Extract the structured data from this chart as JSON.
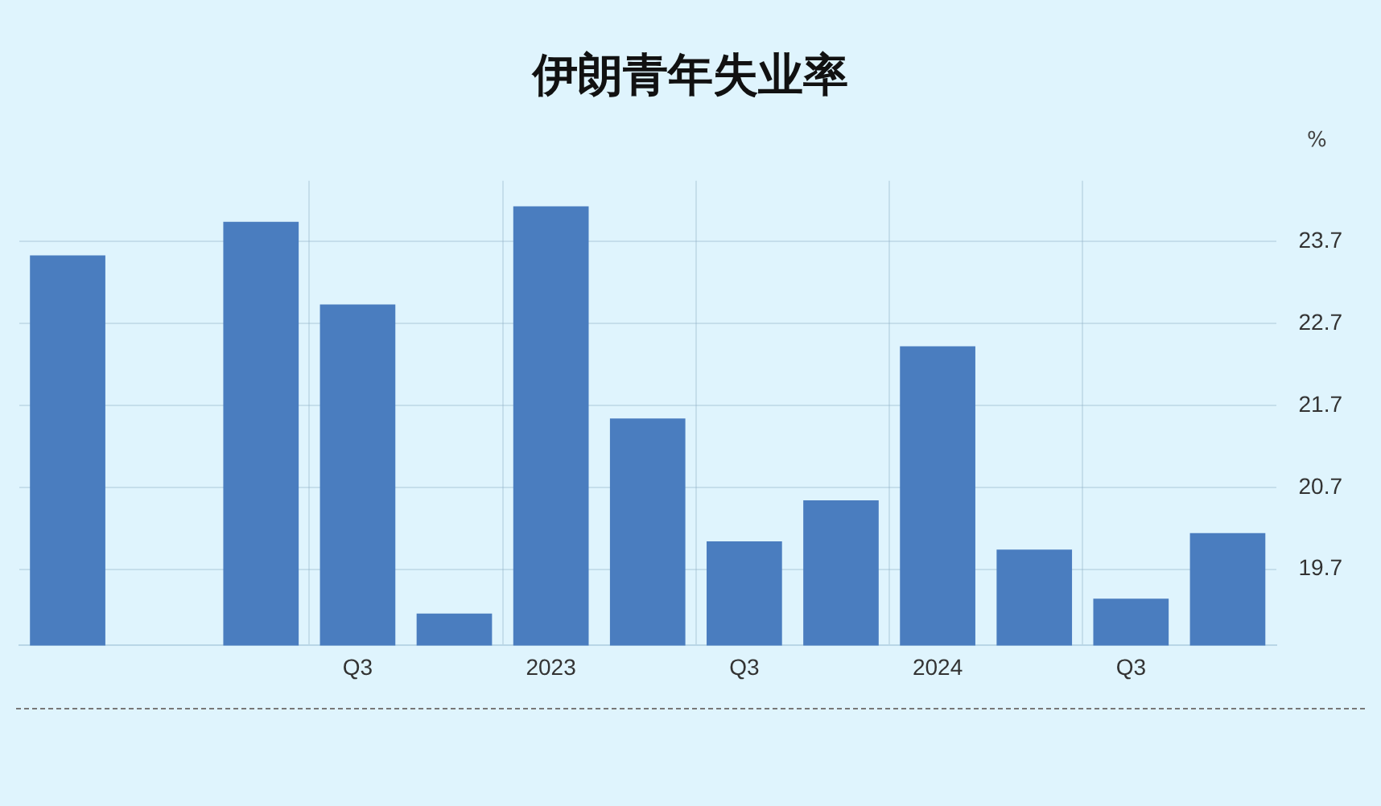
{
  "chart_data": {
    "type": "bar",
    "title": "伊朗青年失业率",
    "ylabel": "%",
    "categories": [
      null,
      null,
      null,
      "Q3",
      null,
      "2023",
      null,
      "Q3",
      null,
      "2024",
      null,
      "Q3",
      null
    ],
    "values": [
      23.53,
      null,
      23.94,
      22.93,
      19.16,
      24.13,
      21.54,
      20.04,
      20.54,
      22.42,
      19.94,
      19.34,
      20.14
    ],
    "color": "#4a7dbf",
    "ylim": [
      18.77,
      24.44
    ],
    "yticks": [
      19.7,
      20.7,
      21.7,
      22.7,
      23.7
    ],
    "grid": true,
    "legend": false
  }
}
